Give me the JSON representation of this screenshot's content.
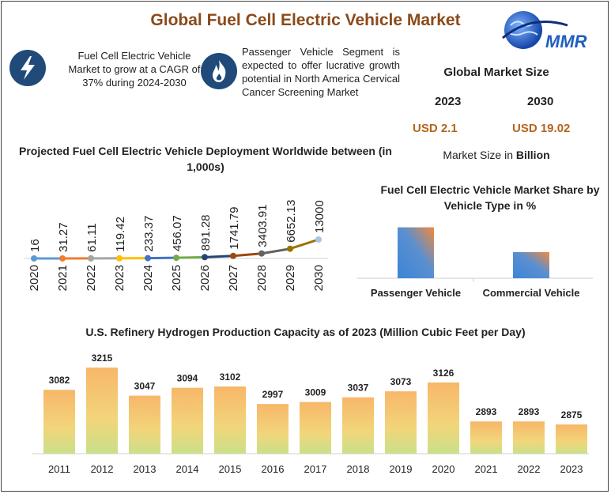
{
  "header": {
    "title": "Global Fuel Cell Electric Vehicle Market",
    "logo_text": "MMR"
  },
  "info_boxes": [
    {
      "icon": "lightning-icon",
      "text": "Fuel Cell Electric Vehicle Market to grow at a CAGR of 37% during 2024-2030"
    },
    {
      "icon": "flame-icon",
      "text": "Passenger Vehicle Segment is expected to offer lucrative growth potential in North America Cervical Cancer Screening Market"
    }
  ],
  "market_size": {
    "title": "Global Market Size",
    "year_a": "2023",
    "year_b": "2030",
    "value_a": "USD 2.1",
    "value_b": "USD 19.02",
    "note_prefix": "Market Size in ",
    "note_unit": "Billion"
  },
  "colors": {
    "title": "#8a4a1a",
    "value": "#b5651d",
    "icon_bg": "#1f4a7a"
  },
  "chart_data": [
    {
      "type": "line",
      "title": "Projected Fuel Cell Electric Vehicle Deployment Worldwide between (in 1,000s)",
      "x": [
        "2020",
        "2021",
        "2022",
        "2023",
        "2024",
        "2025",
        "2026",
        "2027",
        "2028",
        "2029",
        "2030"
      ],
      "values": [
        16,
        31.27,
        61.11,
        119.42,
        233.37,
        456.07,
        891.28,
        1741.79,
        3403.91,
        6652.13,
        13000
      ],
      "labels": [
        "16",
        "31.27",
        "61.11",
        "119.42",
        "233.37",
        "456.07",
        "891.28",
        "1741.79",
        "3403.91",
        "6652.13",
        "13000"
      ],
      "point_colors": [
        "#5b9bd5",
        "#ed7d31",
        "#a5a5a5",
        "#ffc000",
        "#4472c4",
        "#70ad47",
        "#264478",
        "#9e480e",
        "#636363",
        "#997300",
        "#a9c4e8"
      ]
    },
    {
      "type": "bar",
      "title": "Fuel Cell Electric Vehicle Market Share by Vehicle Type in %",
      "categories": [
        "Passenger Vehicle",
        "Commercial Vehicle"
      ],
      "values": [
        70,
        36
      ],
      "ylim": [
        0,
        100
      ]
    },
    {
      "type": "bar",
      "title": "U.S. Refinery Hydrogen Production Capacity as of 2023 (Million Cubic Feet per Day)",
      "categories": [
        "2011",
        "2012",
        "2013",
        "2014",
        "2015",
        "2016",
        "2017",
        "2018",
        "2019",
        "2020",
        "2021",
        "2022",
        "2023"
      ],
      "values": [
        3082,
        3215,
        3047,
        3094,
        3102,
        2997,
        3009,
        3037,
        3073,
        3126,
        2893,
        2893,
        2875
      ],
      "labels": [
        "3082",
        "3215",
        "3047",
        "3094",
        "3102",
        "2997",
        "3009",
        "3037",
        "3073",
        "3126",
        "2893",
        "2893",
        "2875"
      ],
      "ylim": [
        2700,
        3220
      ]
    }
  ]
}
